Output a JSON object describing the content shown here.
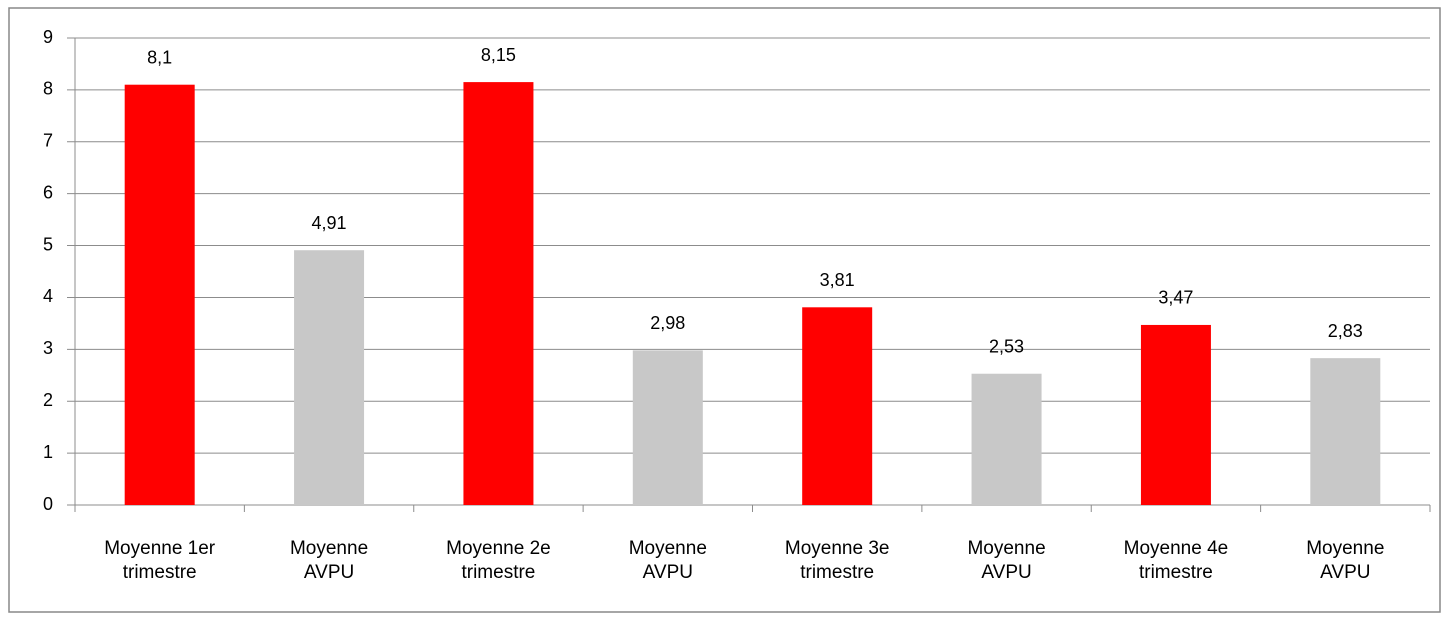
{
  "chart_data": {
    "type": "bar",
    "categories": [
      "Moyenne 1er trimestre",
      "Moyenne AVPU",
      "Moyenne 2e trimestre",
      "Moyenne AVPU",
      "Moyenne 3e trimestre",
      "Moyenne AVPU",
      "Moyenne 4e trimestre",
      "Moyenne AVPU"
    ],
    "values": [
      8.1,
      4.91,
      8.15,
      2.98,
      3.81,
      2.53,
      3.47,
      2.83
    ],
    "value_labels": [
      "8,1",
      "4,91",
      "8,15",
      "2,98",
      "3,81",
      "2,53",
      "3,47",
      "2,83"
    ],
    "colors": [
      "#ff0000",
      "#c8c8c8",
      "#ff0000",
      "#c8c8c8",
      "#ff0000",
      "#c8c8c8",
      "#ff0000",
      "#c8c8c8"
    ],
    "ylim": [
      0,
      9
    ],
    "yticks": [
      0,
      1,
      2,
      3,
      4,
      5,
      6,
      7,
      8,
      9
    ],
    "grid": true
  }
}
